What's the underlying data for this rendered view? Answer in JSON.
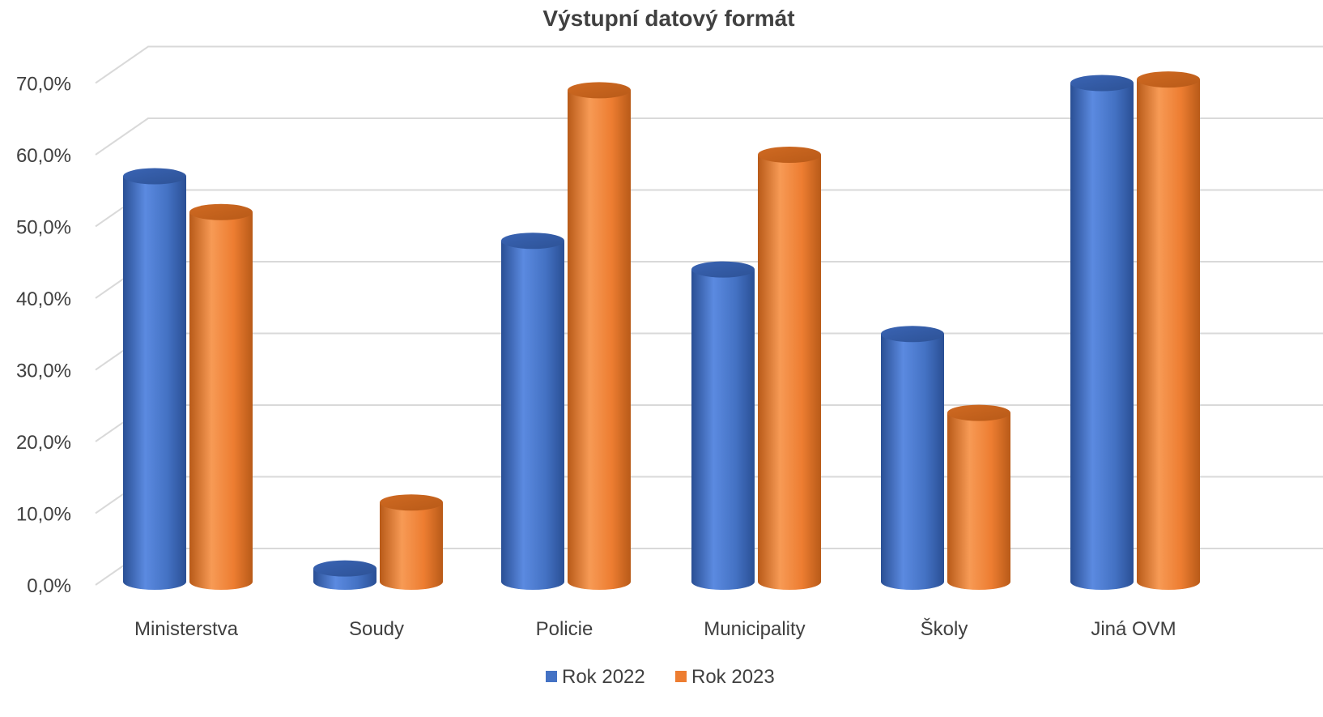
{
  "chart_data": {
    "type": "bar",
    "title": "Výstupní datový formát",
    "categories": [
      "Ministerstva",
      "Soudy",
      "Policie",
      "Municipality",
      "Školy",
      "Jiná OVM"
    ],
    "series": [
      {
        "name": "Rok 2022",
        "color": "#4472c4",
        "values": [
          57.0,
          2.3,
          48.0,
          44.0,
          35.0,
          70.0
        ]
      },
      {
        "name": "Rok 2023",
        "color": "#ed7d31",
        "values": [
          52.0,
          11.5,
          69.0,
          60.0,
          24.0,
          70.5
        ]
      }
    ],
    "ylim": [
      0,
      70
    ],
    "yticks": [
      "0,0%",
      "10,0%",
      "20,0%",
      "30,0%",
      "40,0%",
      "50,0%",
      "60,0%",
      "70,0%"
    ],
    "xlabel": "",
    "ylabel": "",
    "grid": true,
    "legend": "bottom",
    "style": "3d-cylinder"
  }
}
